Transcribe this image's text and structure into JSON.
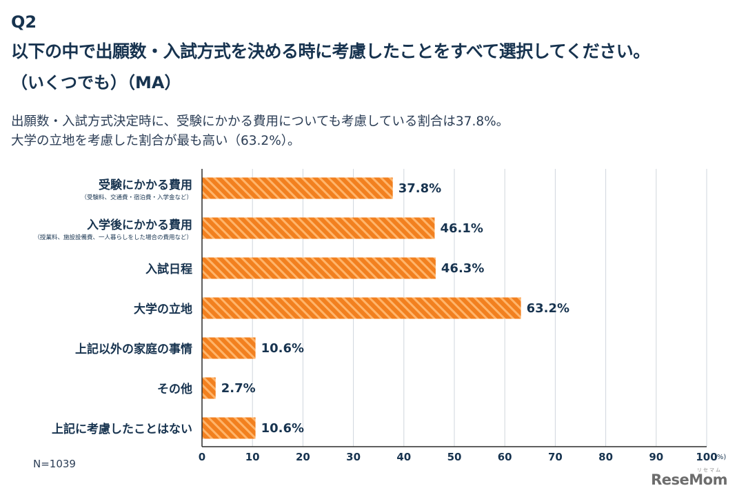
{
  "header": {
    "question_number": "Q2",
    "question_title": "以下の中で出願数・入試方式を決める時に考慮したことをすべて選択してください。",
    "question_sub": "（いくつでも）（MA）"
  },
  "summary": {
    "line1": "出願数・入試方式決定時に、受験にかかる費用についても考慮している割合は37.8%。",
    "line2": "大学の立地を考慮した割合が最も高い（63.2%）。"
  },
  "footer": {
    "sample_size": "N=1039",
    "logo_text": "ReseMom",
    "logo_sup": "リセマム"
  },
  "colors": {
    "bar_fill": "#f2801f",
    "bar_stripe": "#ffb56b",
    "text_dark": "#17334f",
    "grid": "#cfd5dc"
  },
  "chart_data": {
    "type": "bar",
    "orientation": "horizontal",
    "categories": [
      "受験にかかる費用",
      "入学後にかかる費用",
      "入試日程",
      "大学の立地",
      "上記以外の家庭の事情",
      "その他",
      "上記に考慮したことはない"
    ],
    "category_notes": [
      "（受験料、交通費・宿泊費・入学金など）",
      "（授業料、施設設備費、一人暮らしをした場合の費用など）",
      "",
      "",
      "",
      "",
      ""
    ],
    "values": [
      37.8,
      46.1,
      46.3,
      63.2,
      10.6,
      2.7,
      10.6
    ],
    "value_labels": [
      "37.8%",
      "46.1%",
      "46.3%",
      "63.2%",
      "10.6%",
      "2.7%",
      "10.6%"
    ],
    "xlim": [
      0,
      100
    ],
    "xticks": [
      "0",
      "10",
      "20",
      "30",
      "40",
      "50",
      "60",
      "70",
      "80",
      "90",
      "100"
    ],
    "unit_label": "(%)",
    "grid": true
  }
}
